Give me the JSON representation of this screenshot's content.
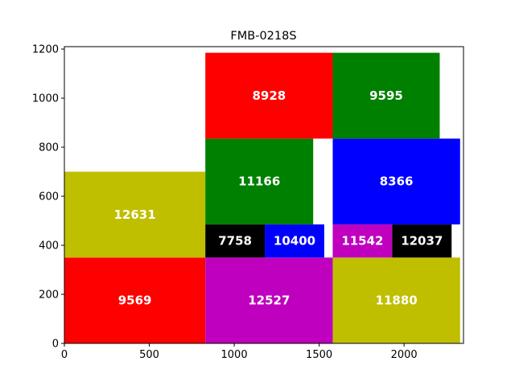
{
  "chart_data": {
    "type": "rectangle-packing",
    "title": "FMB-0218S",
    "xlim": [
      0,
      2350
    ],
    "ylim": [
      0,
      1210
    ],
    "xticks": [
      0,
      500,
      1000,
      1500,
      2000
    ],
    "yticks": [
      0,
      200,
      400,
      600,
      800,
      1000,
      1200
    ],
    "grid": false,
    "rects": [
      {
        "label": "9569",
        "x": 0,
        "y": 0,
        "w": 830,
        "h": 350,
        "color": "#ff0000"
      },
      {
        "label": "12631",
        "x": 0,
        "y": 350,
        "w": 830,
        "h": 350,
        "color": "#bfbf00"
      },
      {
        "label": "12527",
        "x": 830,
        "y": 0,
        "w": 750,
        "h": 350,
        "color": "#bf00bf"
      },
      {
        "label": "7758",
        "x": 830,
        "y": 350,
        "w": 350,
        "h": 135,
        "color": "#000000"
      },
      {
        "label": "10400",
        "x": 1180,
        "y": 350,
        "w": 350,
        "h": 135,
        "color": "#0000ff"
      },
      {
        "label": "11166",
        "x": 830,
        "y": 485,
        "w": 635,
        "h": 350,
        "color": "#008000"
      },
      {
        "label": "8928",
        "x": 830,
        "y": 835,
        "w": 750,
        "h": 350,
        "color": "#ff0000"
      },
      {
        "label": "11880",
        "x": 1580,
        "y": 0,
        "w": 750,
        "h": 350,
        "color": "#bfbf00"
      },
      {
        "label": "11542",
        "x": 1580,
        "y": 350,
        "w": 350,
        "h": 135,
        "color": "#bf00bf"
      },
      {
        "label": "12037",
        "x": 1930,
        "y": 350,
        "w": 350,
        "h": 135,
        "color": "#000000"
      },
      {
        "label": "8366",
        "x": 1580,
        "y": 485,
        "w": 750,
        "h": 350,
        "color": "#0000ff"
      },
      {
        "label": "9595",
        "x": 1580,
        "y": 835,
        "w": 630,
        "h": 350,
        "color": "#008000"
      }
    ]
  }
}
